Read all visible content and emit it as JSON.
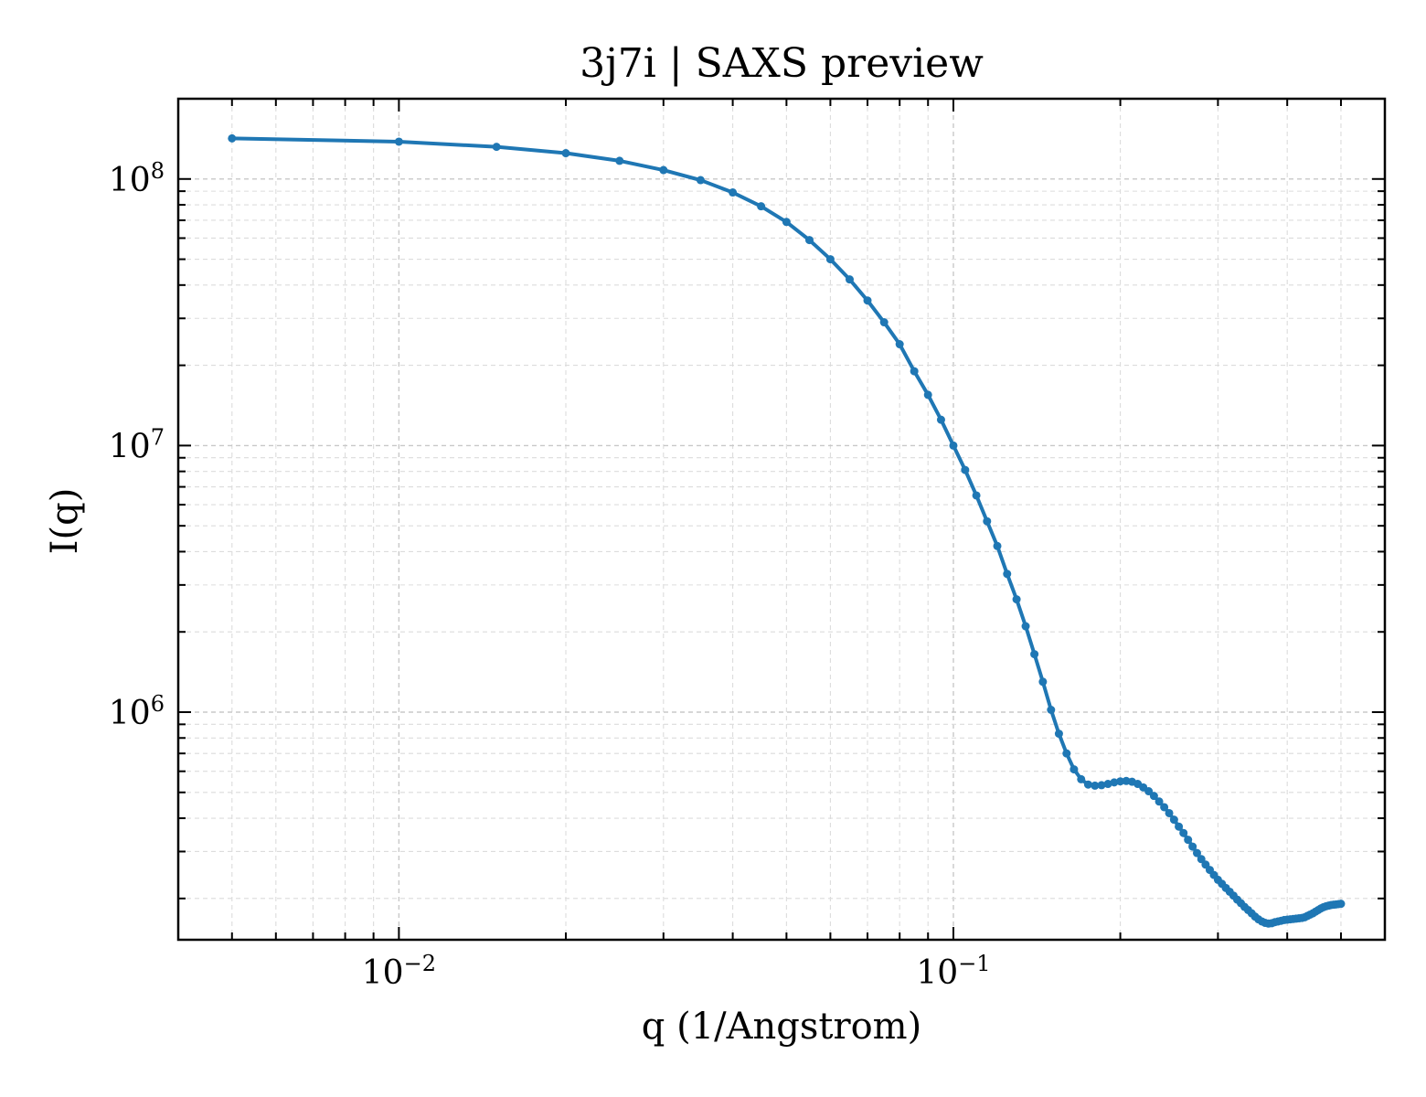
{
  "chart_data": {
    "type": "line",
    "title": "3j7i | SAXS preview",
    "xlabel": "q (1/Angstrom)",
    "ylabel": "I(q)",
    "xscale": "log",
    "yscale": "log",
    "xlim": [
      0.004,
      0.6
    ],
    "ylim": [
      140000,
      200000000
    ],
    "grid": true,
    "legend": "none",
    "x_ticks": [
      {
        "value": 0.01,
        "base": "10",
        "exp": "−2"
      },
      {
        "value": 0.1,
        "base": "10",
        "exp": "−1"
      }
    ],
    "y_ticks": [
      {
        "value": 1000000,
        "base": "10",
        "exp": "6"
      },
      {
        "value": 10000000,
        "base": "10",
        "exp": "7"
      },
      {
        "value": 100000000,
        "base": "10",
        "exp": "8"
      }
    ],
    "series": [
      {
        "color": "#1f77b4",
        "x": [
          0.005,
          0.01,
          0.015,
          0.02,
          0.025,
          0.03,
          0.035,
          0.04,
          0.045,
          0.05,
          0.055,
          0.06,
          0.065,
          0.07,
          0.075,
          0.08,
          0.085,
          0.09,
          0.095,
          0.1,
          0.105,
          0.11,
          0.115,
          0.12,
          0.125,
          0.13,
          0.135,
          0.14,
          0.145,
          0.15,
          0.155,
          0.16,
          0.165,
          0.17,
          0.175,
          0.18,
          0.185,
          0.19,
          0.195,
          0.2,
          0.205,
          0.21,
          0.215,
          0.22,
          0.225,
          0.23,
          0.235,
          0.24,
          0.245,
          0.25,
          0.255,
          0.26,
          0.265,
          0.27,
          0.275,
          0.28,
          0.285,
          0.29,
          0.295,
          0.3,
          0.305,
          0.31,
          0.315,
          0.32,
          0.325,
          0.33,
          0.335,
          0.34,
          0.345,
          0.35,
          0.355,
          0.36,
          0.365,
          0.37,
          0.375,
          0.38,
          0.385,
          0.39,
          0.395,
          0.4,
          0.405,
          0.41,
          0.415,
          0.42,
          0.425,
          0.43,
          0.435,
          0.44,
          0.445,
          0.45,
          0.455,
          0.46,
          0.465,
          0.47,
          0.475,
          0.48,
          0.485,
          0.49,
          0.495,
          0.5
        ],
        "y": [
          142000000,
          138000000,
          132000000,
          125000000,
          117000000,
          108000000,
          99000000,
          89000000,
          79000000,
          69000000,
          59000000,
          50000000,
          42000000,
          35000000,
          29000000,
          24000000,
          19000000,
          15500000,
          12500000,
          10000000,
          8100000,
          6500000,
          5200000,
          4200000,
          3300000,
          2650000,
          2100000,
          1650000,
          1300000,
          1020000,
          830000,
          700000,
          610000,
          560000,
          535000,
          530000,
          532000,
          538000,
          545000,
          550000,
          552000,
          548000,
          538000,
          522000,
          505000,
          485000,
          462000,
          440000,
          418000,
          395000,
          372000,
          352000,
          332000,
          313000,
          296000,
          281000,
          268000,
          256000,
          245000,
          235000,
          227000,
          219000,
          212000,
          205000,
          198000,
          192000,
          186000,
          181000,
          176000,
          171000,
          167000,
          164000,
          162000,
          161000,
          161500,
          163000,
          164000,
          165000,
          166000,
          166500,
          167000,
          167500,
          168000,
          168500,
          169000,
          170000,
          172000,
          174000,
          176000,
          178500,
          181000,
          183500,
          185500,
          187000,
          188000,
          189000,
          189500,
          190000,
          190500,
          191000
        ]
      }
    ]
  }
}
